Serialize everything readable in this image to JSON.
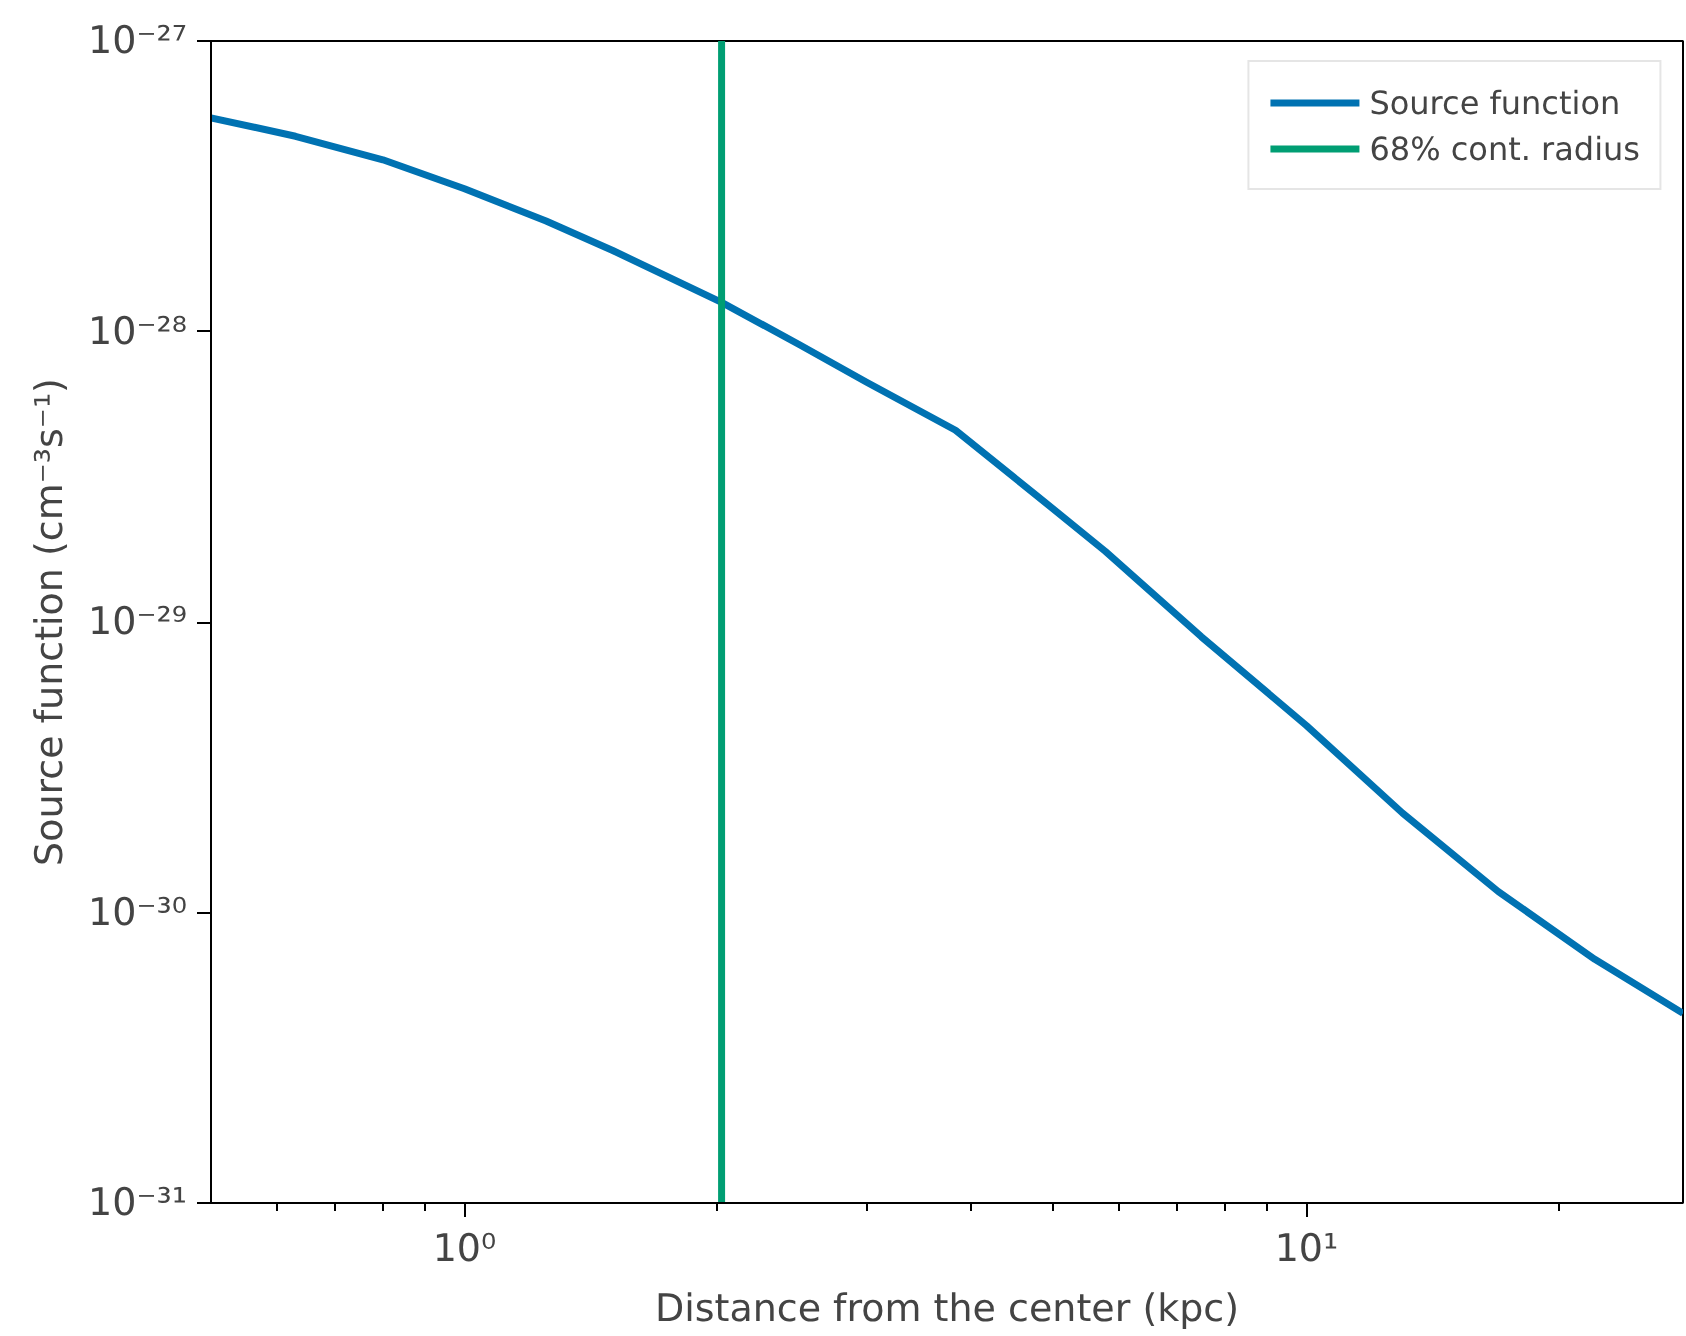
{
  "chart_data": {
    "type": "line",
    "xlabel": "Distance from the center (kpc)",
    "ylabel": "Source function (cm⁻³s⁻¹)",
    "log": "xy",
    "xlim": [
      0.5,
      28
    ],
    "ylim": [
      1e-31,
      1e-27
    ],
    "xticks": [
      {
        "value": 1,
        "label": "10⁰"
      },
      {
        "value": 10,
        "label": "10¹"
      },
      {
        "value": 0.6,
        "label": null
      },
      {
        "value": 0.7,
        "label": null
      },
      {
        "value": 0.8,
        "label": null
      },
      {
        "value": 0.9,
        "label": null
      },
      {
        "value": 2,
        "label": null
      },
      {
        "value": 3,
        "label": null
      },
      {
        "value": 4,
        "label": null
      },
      {
        "value": 5,
        "label": null
      },
      {
        "value": 6,
        "label": null
      },
      {
        "value": 7,
        "label": null
      },
      {
        "value": 8,
        "label": null
      },
      {
        "value": 9,
        "label": null
      },
      {
        "value": 20,
        "label": null
      }
    ],
    "yticks": [
      {
        "value": 1e-31,
        "label": "10⁻³¹"
      },
      {
        "value": 1e-30,
        "label": "10⁻³⁰"
      },
      {
        "value": 1e-29,
        "label": "10⁻²⁹"
      },
      {
        "value": 1e-28,
        "label": "10⁻²⁸"
      },
      {
        "value": 1e-27,
        "label": "10⁻²⁷"
      }
    ],
    "series": [
      {
        "name": "Source function",
        "color": "#0072b2",
        "x": [
          0.5,
          0.63,
          0.8,
          1,
          1.25,
          1.5,
          2.02,
          2.5,
          3,
          3.83,
          4.8,
          5.77,
          7.5,
          10,
          13,
          16.9,
          22,
          28
        ],
        "values": [
          5.44e-28,
          4.7e-28,
          3.9e-28,
          3.1e-28,
          2.4e-28,
          1.9e-28,
          1.26e-28,
          9e-29,
          6.7e-29,
          4.57e-29,
          2.7e-29,
          1.75e-29,
          8.9e-30,
          4.4e-30,
          2.2e-30,
          1.18e-30,
          6.9e-31,
          4.5e-31
        ]
      },
      {
        "name": "68% cont. radius",
        "color": "#009e73",
        "x": [
          2.02,
          2.02
        ],
        "values": [
          1e-31,
          1e-27
        ]
      }
    ],
    "legend": "top right",
    "grid": false,
    "marker": "none",
    "line_style": "solid"
  }
}
